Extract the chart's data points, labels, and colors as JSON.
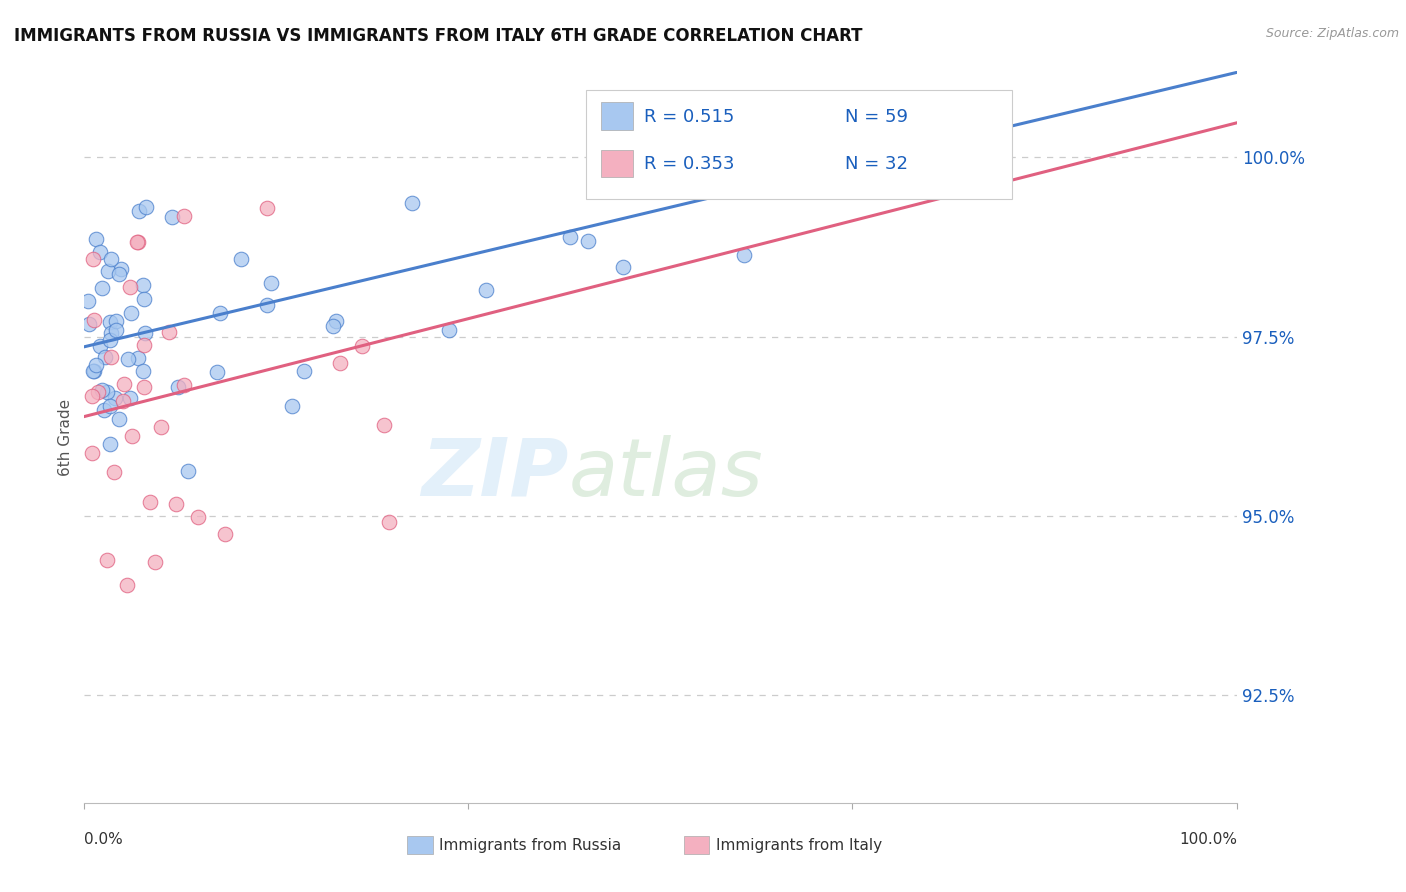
{
  "title": "IMMIGRANTS FROM RUSSIA VS IMMIGRANTS FROM ITALY 6TH GRADE CORRELATION CHART",
  "source_text": "Source: ZipAtlas.com",
  "ylabel": "6th Grade",
  "yticks": [
    92.5,
    95.0,
    97.5,
    100.0
  ],
  "ytick_labels": [
    "92.5%",
    "95.0%",
    "97.5%",
    "100.0%"
  ],
  "xmin": 0.0,
  "xmax": 100.0,
  "ymin": 91.0,
  "ymax": 101.2,
  "color_russia": "#a8c8f0",
  "color_italy": "#f4b0c0",
  "color_russia_line": "#4a7fcc",
  "color_italy_line": "#e06080",
  "watermark_zip": "ZIP",
  "watermark_atlas": "atlas",
  "legend_text_color": "#1a5fbd",
  "legend_n_color": "#111111",
  "grid_color": "#cccccc",
  "background_color": "#ffffff",
  "russia_seed": 123,
  "italy_seed": 456
}
